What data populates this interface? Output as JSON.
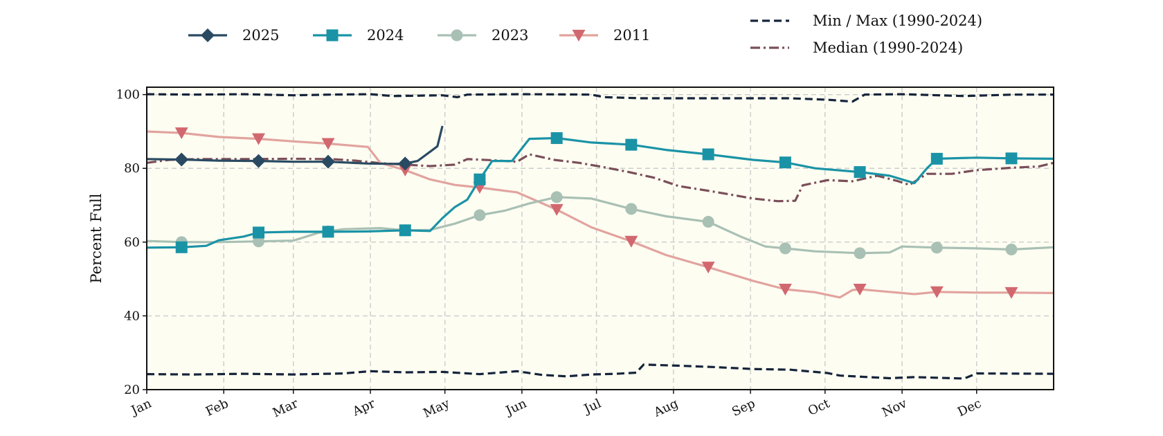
{
  "chart_data": {
    "type": "line",
    "title": "",
    "xlabel": "",
    "ylabel": "Percent Full",
    "ylim": [
      20,
      102
    ],
    "yticks": [
      20,
      40,
      60,
      80,
      100
    ],
    "xlim": [
      1,
      366
    ],
    "months": [
      {
        "label": "Jan",
        "day": 1
      },
      {
        "label": "Feb",
        "day": 32
      },
      {
        "label": "Mar",
        "day": 60
      },
      {
        "label": "Apr",
        "day": 91
      },
      {
        "label": "May",
        "day": 121
      },
      {
        "label": "Jun",
        "day": 152
      },
      {
        "label": "Jul",
        "day": 182
      },
      {
        "label": "Aug",
        "day": 213
      },
      {
        "label": "Sep",
        "day": 244
      },
      {
        "label": "Oct",
        "day": 274
      },
      {
        "label": "Nov",
        "day": 305
      },
      {
        "label": "Dec",
        "day": 335
      }
    ],
    "grid": true,
    "plot_background": "#fdfdf2",
    "legend_placement": "top",
    "series": [
      {
        "name": "Min / Max (1990-2024)",
        "role": "max",
        "color": "#15243a",
        "line_style": "dashed",
        "marker": "none",
        "points": [
          [
            1,
            100.1
          ],
          [
            20,
            100
          ],
          [
            40,
            100.1
          ],
          [
            60,
            99.8
          ],
          [
            75,
            100
          ],
          [
            91,
            100.1
          ],
          [
            100,
            99.6
          ],
          [
            120,
            99.8
          ],
          [
            126,
            99.3
          ],
          [
            130,
            100
          ],
          [
            152,
            100.1
          ],
          [
            180,
            100
          ],
          [
            185,
            99.3
          ],
          [
            200,
            99
          ],
          [
            230,
            99
          ],
          [
            260,
            99
          ],
          [
            275,
            98.6
          ],
          [
            285,
            98.1
          ],
          [
            290,
            100
          ],
          [
            305,
            100.1
          ],
          [
            330,
            99.6
          ],
          [
            350,
            100
          ],
          [
            366,
            100
          ]
        ]
      },
      {
        "name": "",
        "role": "min",
        "color": "#15243a",
        "line_style": "dashed",
        "marker": "none",
        "points": [
          [
            1,
            24.2
          ],
          [
            20,
            24.1
          ],
          [
            40,
            24.3
          ],
          [
            60,
            24.1
          ],
          [
            80,
            24.4
          ],
          [
            91,
            25
          ],
          [
            105,
            24.7
          ],
          [
            120,
            24.8
          ],
          [
            135,
            24.2
          ],
          [
            150,
            25
          ],
          [
            160,
            24
          ],
          [
            170,
            23.6
          ],
          [
            180,
            24.1
          ],
          [
            190,
            24.3
          ],
          [
            198,
            24.6
          ],
          [
            201,
            26.8
          ],
          [
            215,
            26.5
          ],
          [
            230,
            26.1
          ],
          [
            245,
            25.6
          ],
          [
            260,
            25.4
          ],
          [
            275,
            24.5
          ],
          [
            280,
            23.8
          ],
          [
            300,
            23.1
          ],
          [
            310,
            23.4
          ],
          [
            330,
            23
          ],
          [
            335,
            24.4
          ],
          [
            366,
            24.3
          ]
        ]
      },
      {
        "name": "Median (1990-2024)",
        "role": "median",
        "color": "#7a4e58",
        "line_style": "dashdot",
        "marker": "none",
        "points": [
          [
            1,
            81.5
          ],
          [
            10,
            82.3
          ],
          [
            20,
            82.5
          ],
          [
            40,
            82.5
          ],
          [
            60,
            82.6
          ],
          [
            75,
            82.5
          ],
          [
            85,
            82.1
          ],
          [
            95,
            81.4
          ],
          [
            105,
            81
          ],
          [
            115,
            80.6
          ],
          [
            125,
            81
          ],
          [
            130,
            82.5
          ],
          [
            140,
            82.2
          ],
          [
            150,
            81.8
          ],
          [
            155,
            83.8
          ],
          [
            165,
            82.3
          ],
          [
            175,
            81.5
          ],
          [
            185,
            80.3
          ],
          [
            195,
            79
          ],
          [
            205,
            77.5
          ],
          [
            215,
            75.2
          ],
          [
            230,
            73.6
          ],
          [
            245,
            71.8
          ],
          [
            255,
            71.1
          ],
          [
            262,
            71.2
          ],
          [
            265,
            75.4
          ],
          [
            275,
            76.8
          ],
          [
            285,
            76.5
          ],
          [
            295,
            78
          ],
          [
            303,
            76.6
          ],
          [
            308,
            75.5
          ],
          [
            315,
            78.5
          ],
          [
            325,
            78.5
          ],
          [
            335,
            79.5
          ],
          [
            350,
            80.2
          ],
          [
            360,
            80.5
          ],
          [
            366,
            81.5
          ]
        ]
      },
      {
        "name": "2025",
        "role": "year",
        "color": "#2a4a62",
        "line_style": "solid",
        "marker": "diamond",
        "markers_at": [
          15,
          46,
          74,
          105
        ],
        "points": [
          [
            1,
            82.5
          ],
          [
            15,
            82.4
          ],
          [
            30,
            82.1
          ],
          [
            46,
            82
          ],
          [
            60,
            81.8
          ],
          [
            74,
            81.8
          ],
          [
            90,
            81.3
          ],
          [
            100,
            81.2
          ],
          [
            105,
            81.3
          ],
          [
            110,
            82
          ],
          [
            115,
            84.5
          ],
          [
            118,
            86
          ],
          [
            120,
            91.5
          ]
        ]
      },
      {
        "name": "2024",
        "role": "year",
        "color": "#1a93a6",
        "line_style": "solid",
        "marker": "square",
        "markers_at": [
          15,
          46,
          74,
          105,
          135,
          166,
          196,
          227,
          258,
          288,
          319,
          349
        ],
        "points": [
          [
            1,
            58.5
          ],
          [
            15,
            58.6
          ],
          [
            25,
            59
          ],
          [
            30,
            60.5
          ],
          [
            40,
            61.5
          ],
          [
            46,
            62.6
          ],
          [
            60,
            62.8
          ],
          [
            74,
            62.8
          ],
          [
            90,
            62.9
          ],
          [
            105,
            63.2
          ],
          [
            115,
            63
          ],
          [
            120,
            66.5
          ],
          [
            125,
            69.5
          ],
          [
            130,
            71.5
          ],
          [
            135,
            77
          ],
          [
            140,
            82
          ],
          [
            148,
            82
          ],
          [
            155,
            88
          ],
          [
            166,
            88.2
          ],
          [
            180,
            87
          ],
          [
            196,
            86.4
          ],
          [
            210,
            85
          ],
          [
            227,
            83.8
          ],
          [
            245,
            82.3
          ],
          [
            258,
            81.6
          ],
          [
            270,
            80
          ],
          [
            288,
            79
          ],
          [
            300,
            78
          ],
          [
            310,
            76
          ],
          [
            315,
            80
          ],
          [
            319,
            82.6
          ],
          [
            335,
            82.9
          ],
          [
            349,
            82.7
          ],
          [
            366,
            82.6
          ]
        ]
      },
      {
        "name": "2023",
        "role": "year",
        "color": "#a9c0b4",
        "line_style": "solid",
        "marker": "circle",
        "markers_at": [
          15,
          46,
          74,
          105,
          135,
          166,
          196,
          227,
          258,
          288,
          319,
          349
        ],
        "points": [
          [
            1,
            60.3
          ],
          [
            15,
            60
          ],
          [
            30,
            60
          ],
          [
            46,
            60.2
          ],
          [
            60,
            60.4
          ],
          [
            70,
            62.5
          ],
          [
            80,
            63.5
          ],
          [
            95,
            63.8
          ],
          [
            105,
            63.2
          ],
          [
            115,
            63.3
          ],
          [
            125,
            65
          ],
          [
            135,
            67.3
          ],
          [
            145,
            68.5
          ],
          [
            155,
            70.5
          ],
          [
            166,
            72.2
          ],
          [
            180,
            71.8
          ],
          [
            196,
            69
          ],
          [
            210,
            67
          ],
          [
            227,
            65.5
          ],
          [
            240,
            61.5
          ],
          [
            250,
            58.8
          ],
          [
            258,
            58.3
          ],
          [
            270,
            57.5
          ],
          [
            288,
            57
          ],
          [
            300,
            57.2
          ],
          [
            305,
            58.8
          ],
          [
            319,
            58.5
          ],
          [
            335,
            58.3
          ],
          [
            349,
            58
          ],
          [
            366,
            58.6
          ]
        ]
      },
      {
        "name": "2011",
        "role": "year",
        "color": "#e2a39e",
        "marker_color": "#d2686f",
        "line_style": "solid",
        "marker": "triangle-down",
        "markers_at": [
          15,
          46,
          74,
          105,
          135,
          166,
          196,
          227,
          258,
          288,
          319,
          349
        ],
        "points": [
          [
            1,
            90
          ],
          [
            15,
            89.6
          ],
          [
            30,
            88.5
          ],
          [
            46,
            88
          ],
          [
            60,
            87.3
          ],
          [
            74,
            86.7
          ],
          [
            90,
            85.8
          ],
          [
            95,
            81.5
          ],
          [
            105,
            79.5
          ],
          [
            115,
            77
          ],
          [
            125,
            75.5
          ],
          [
            135,
            74.8
          ],
          [
            150,
            73.5
          ],
          [
            166,
            68.8
          ],
          [
            180,
            64
          ],
          [
            196,
            60.2
          ],
          [
            210,
            56.5
          ],
          [
            227,
            53.2
          ],
          [
            245,
            49.5
          ],
          [
            258,
            47.2
          ],
          [
            270,
            46.4
          ],
          [
            280,
            45
          ],
          [
            285,
            47
          ],
          [
            288,
            47.2
          ],
          [
            300,
            46.5
          ],
          [
            310,
            45.9
          ],
          [
            319,
            46.5
          ],
          [
            335,
            46.3
          ],
          [
            349,
            46.3
          ],
          [
            366,
            46.2
          ]
        ]
      }
    ]
  }
}
